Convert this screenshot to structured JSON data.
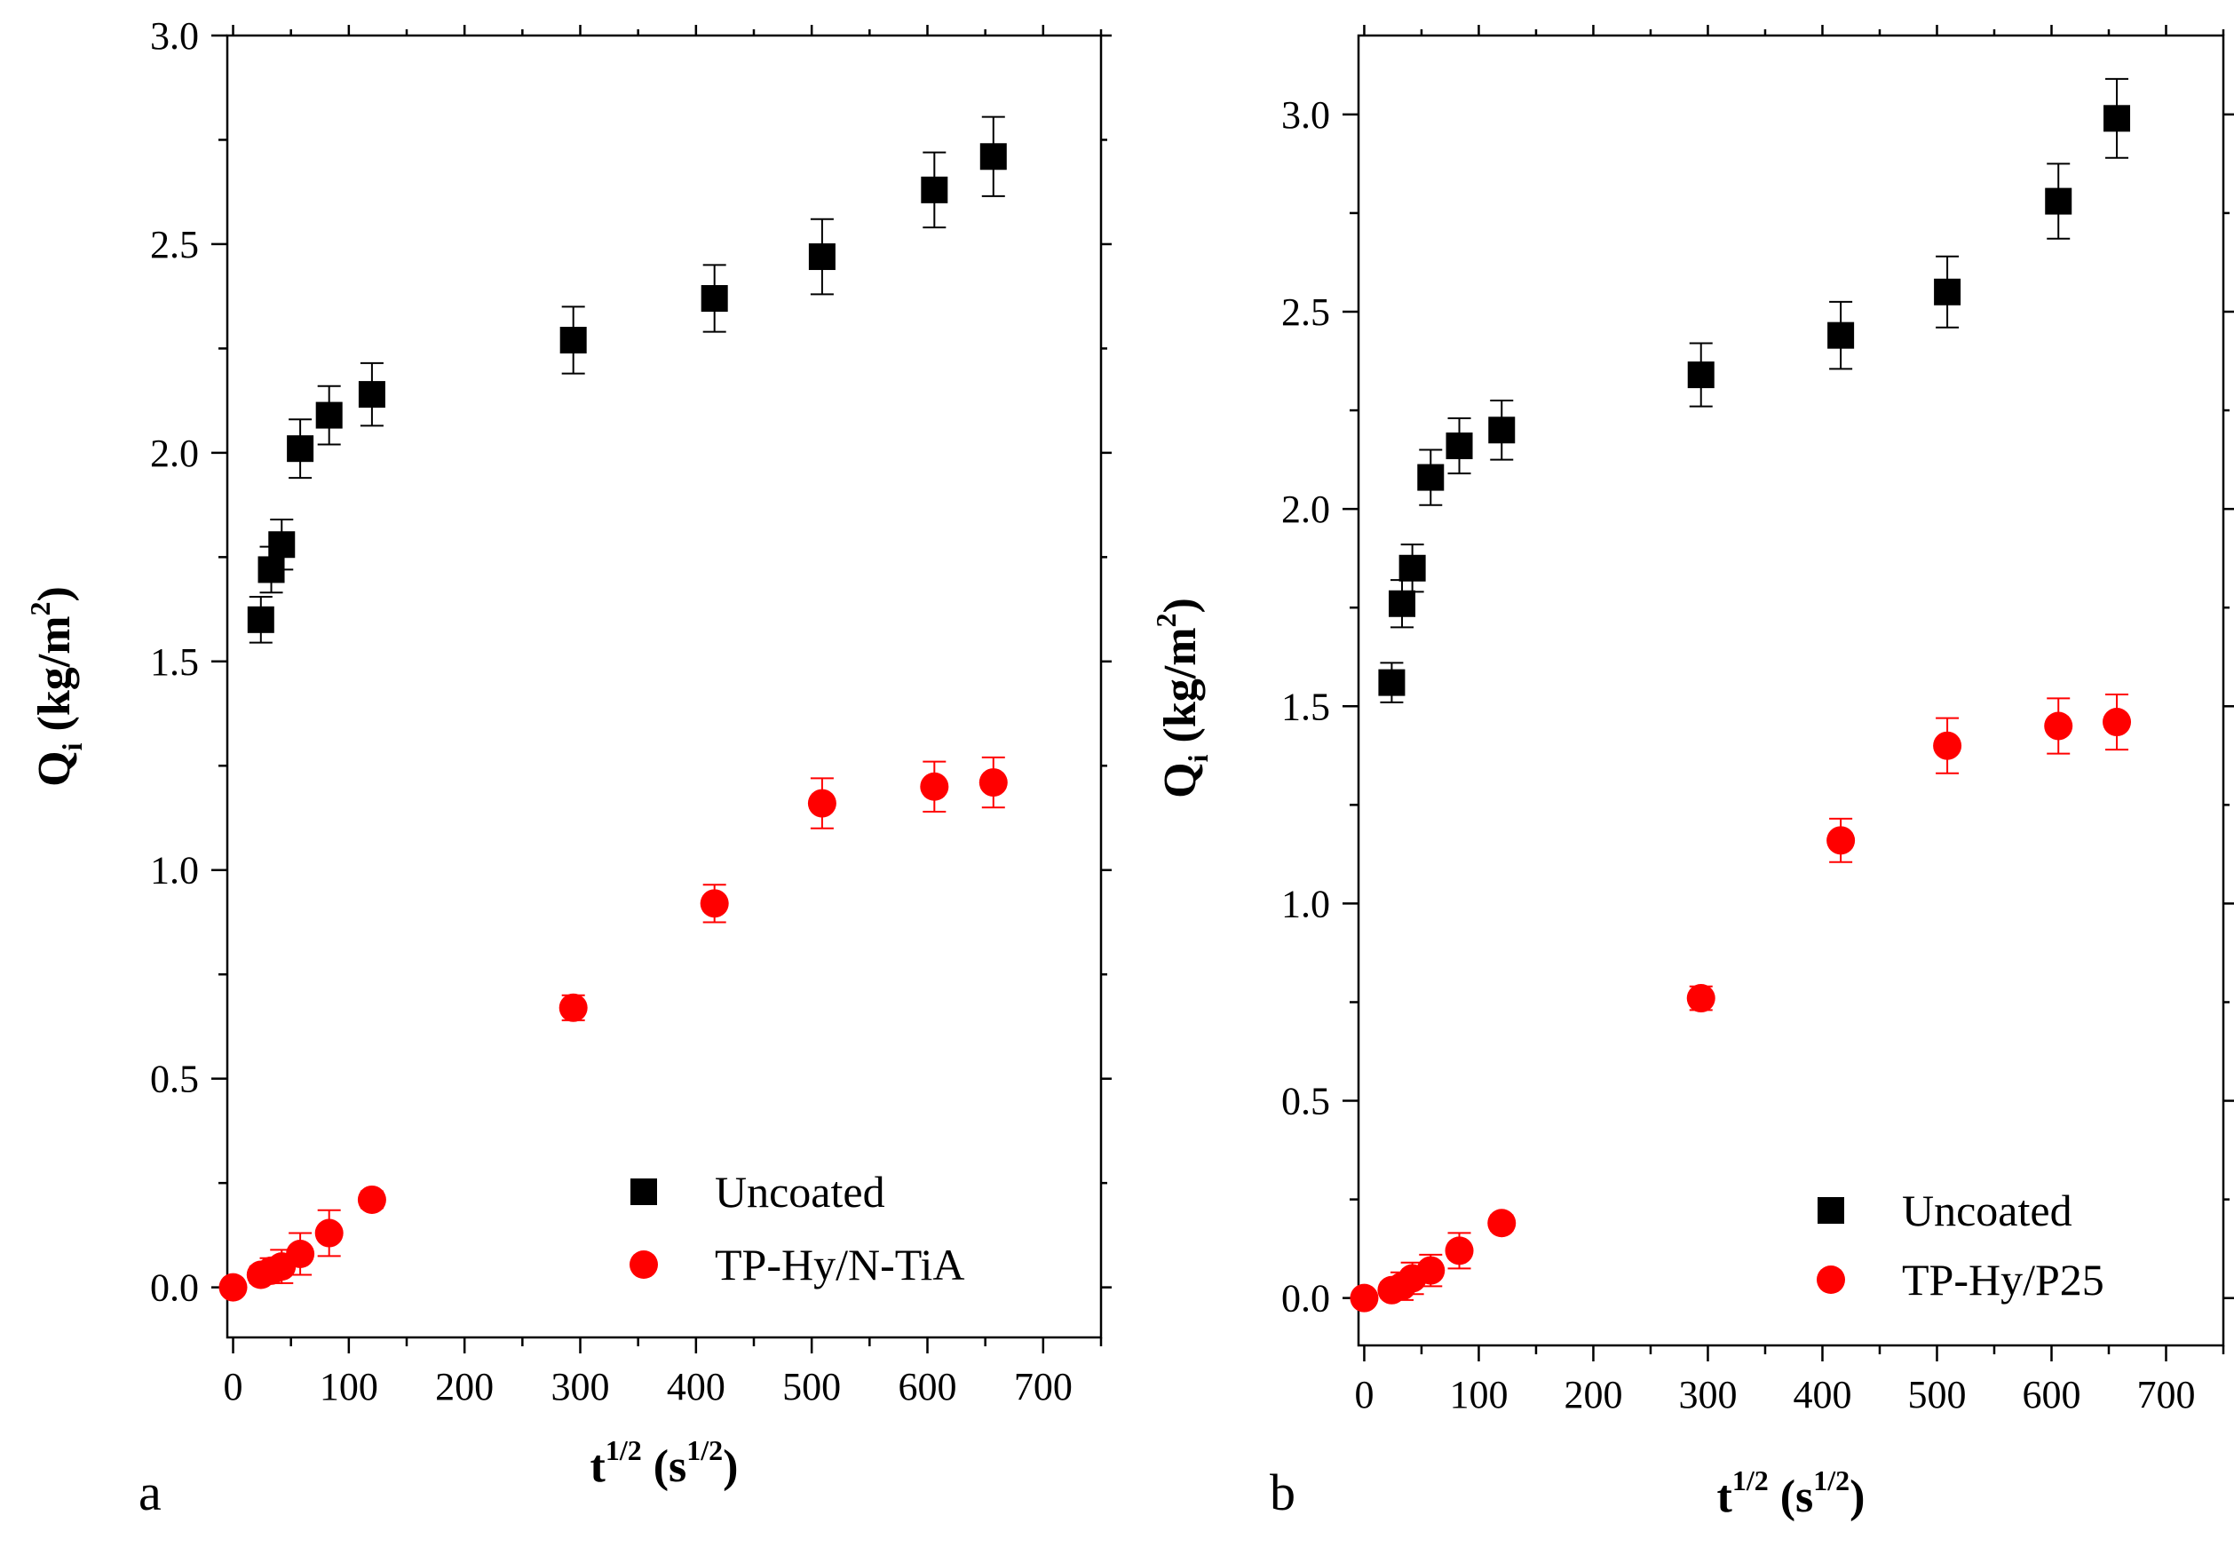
{
  "chart_data": [
    {
      "type": "scatter",
      "panel_letter": "a",
      "xlabel": {
        "main": "t",
        "sup": "1/2",
        "unit_open": " (s",
        "unit_sup": "1/2",
        "unit_close": ")"
      },
      "ylabel": {
        "main": "Q",
        "sub": "i",
        "unit_open": " (kg/m",
        "unit_sup": "2",
        "unit_close": ")"
      },
      "xlim": [
        -5,
        750
      ],
      "ylim": [
        -0.12,
        3.0
      ],
      "xticks": [
        "0",
        "100",
        "200",
        "300",
        "400",
        "500",
        "600",
        "700"
      ],
      "yticks": [
        "0.0",
        "0.5",
        "1.0",
        "1.5",
        "2.0",
        "2.5",
        "3.0"
      ],
      "legend_position": "bottom-right",
      "series": [
        {
          "name": "Uncoated",
          "marker": "square",
          "color": "#000000",
          "x": [
            24,
            33,
            42,
            58,
            83,
            120,
            294,
            416,
            509,
            606,
            657
          ],
          "y": [
            1.6,
            1.72,
            1.78,
            2.01,
            2.09,
            2.14,
            2.27,
            2.37,
            2.47,
            2.63,
            2.71
          ],
          "err": [
            0.055,
            0.055,
            0.06,
            0.07,
            0.07,
            0.075,
            0.08,
            0.08,
            0.09,
            0.09,
            0.095
          ]
        },
        {
          "name": "TP-Hy/N-TiA",
          "marker": "circle",
          "color": "#ff0000",
          "x": [
            0,
            24,
            33,
            42,
            58,
            83,
            120,
            294,
            416,
            509,
            606,
            657
          ],
          "y": [
            0.0,
            0.03,
            0.04,
            0.05,
            0.08,
            0.13,
            0.21,
            0.67,
            0.92,
            1.16,
            1.2,
            1.21
          ],
          "err": [
            0.01,
            0.02,
            0.03,
            0.04,
            0.05,
            0.055,
            0.02,
            0.03,
            0.045,
            0.06,
            0.06,
            0.06
          ]
        }
      ]
    },
    {
      "type": "scatter",
      "panel_letter": "b",
      "xlabel": {
        "main": "t",
        "sup": "1/2",
        "unit_open": " (s",
        "unit_sup": "1/2",
        "unit_close": ")"
      },
      "ylabel": {
        "main": "Q",
        "sub": "i",
        "unit_open": " (kg/m",
        "unit_sup": "2",
        "unit_close": ")"
      },
      "xlim": [
        -5,
        750
      ],
      "ylim": [
        -0.12,
        3.2
      ],
      "xticks": [
        "0",
        "100",
        "200",
        "300",
        "400",
        "500",
        "600",
        "700"
      ],
      "yticks": [
        "0.0",
        "0.5",
        "1.0",
        "1.5",
        "2.0",
        "2.5",
        "3.0"
      ],
      "legend_position": "bottom-right",
      "series": [
        {
          "name": "Uncoated",
          "marker": "square",
          "color": "#000000",
          "x": [
            24,
            33,
            42,
            58,
            83,
            120,
            294,
            416,
            509,
            606,
            657
          ],
          "y": [
            1.56,
            1.76,
            1.85,
            2.08,
            2.16,
            2.2,
            2.34,
            2.44,
            2.55,
            2.78,
            2.99
          ],
          "err": [
            0.05,
            0.06,
            0.06,
            0.07,
            0.07,
            0.075,
            0.08,
            0.085,
            0.09,
            0.095,
            0.1
          ]
        },
        {
          "name": "TP-Hy/P25",
          "marker": "circle",
          "color": "#ff0000",
          "x": [
            0,
            24,
            33,
            42,
            58,
            83,
            120,
            294,
            416,
            509,
            606,
            657
          ],
          "y": [
            0.0,
            0.02,
            0.03,
            0.05,
            0.07,
            0.12,
            0.19,
            0.76,
            1.16,
            1.4,
            1.45,
            1.46
          ],
          "err": [
            0.01,
            0.02,
            0.035,
            0.04,
            0.04,
            0.045,
            0.02,
            0.03,
            0.055,
            0.07,
            0.07,
            0.07
          ]
        }
      ]
    }
  ]
}
